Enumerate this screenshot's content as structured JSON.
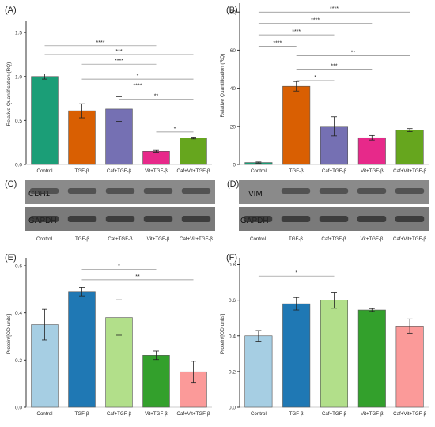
{
  "figure": {
    "panels": [
      {
        "label": "(A)",
        "type": "bar",
        "ylabel": "Relative Quantification (RQ)",
        "ylim": [
          0,
          1.6
        ],
        "yticks": [
          "0.0",
          "0.5",
          "1.0",
          "1.5"
        ],
        "ytick_values": [
          0,
          0.5,
          1.0,
          1.5
        ],
        "categories": [
          "Control",
          "TGF-β",
          "Caf+TGF-β",
          "Vit+TGF-β",
          "Caf+Vit+TGF-β"
        ],
        "values": [
          1.0,
          0.61,
          0.63,
          0.15,
          0.3
        ],
        "errors": [
          0.03,
          0.08,
          0.14,
          0.01,
          0.01
        ],
        "colors": [
          "#1b9e77",
          "#d95f02",
          "#7570b3",
          "#e7298a",
          "#66a61e"
        ],
        "significance": [
          {
            "from": 0,
            "to": 3,
            "label": "****",
            "y": 1.35
          },
          {
            "from": 0,
            "to": 4,
            "label": "***",
            "y": 1.25
          },
          {
            "from": 1,
            "to": 3,
            "label": "****",
            "y": 1.14
          },
          {
            "from": 1,
            "to": 4,
            "label": "*",
            "y": 0.97
          },
          {
            "from": 2,
            "to": 3,
            "label": "****",
            "y": 0.86
          },
          {
            "from": 2,
            "to": 4,
            "label": "**",
            "y": 0.74
          },
          {
            "from": 3,
            "to": 4,
            "label": "*",
            "y": 0.37
          }
        ]
      },
      {
        "label": "(B)",
        "type": "bar",
        "ylabel": "Relative Quantification (RQ)",
        "ylim": [
          0,
          83
        ],
        "yticks": [
          "0",
          "20",
          "40",
          "60",
          "80"
        ],
        "ytick_values": [
          0,
          20,
          40,
          60,
          80
        ],
        "categories": [
          "Control",
          "TGF-β",
          "Caf+TGF-β",
          "Vit+TGF-β",
          "Caf+Vit+TGF-β"
        ],
        "values": [
          1.0,
          41.0,
          20.0,
          14.0,
          18.0
        ],
        "errors": [
          0.3,
          2.5,
          5.0,
          1.2,
          0.8
        ],
        "colors": [
          "#1b9e77",
          "#d95f02",
          "#7570b3",
          "#e7298a",
          "#66a61e"
        ],
        "significance": [
          {
            "from": 0,
            "to": 4,
            "label": "****",
            "y": 80
          },
          {
            "from": 0,
            "to": 3,
            "label": "****",
            "y": 74
          },
          {
            "from": 0,
            "to": 2,
            "label": "****",
            "y": 68
          },
          {
            "from": 0,
            "to": 1,
            "label": "****",
            "y": 62
          },
          {
            "from": 1,
            "to": 4,
            "label": "**",
            "y": 57
          },
          {
            "from": 1,
            "to": 3,
            "label": "***",
            "y": 50
          },
          {
            "from": 1,
            "to": 2,
            "label": "*",
            "y": 44
          }
        ]
      },
      {
        "label": "(E)",
        "type": "bar",
        "ylabel": "Protein/[OD units]",
        "ylim": [
          0,
          0.62
        ],
        "yticks": [
          "0.0",
          "0.2",
          "0.4",
          "0.6"
        ],
        "ytick_values": [
          0,
          0.2,
          0.4,
          0.6
        ],
        "categories": [
          "Control",
          "TGF-β",
          "Caf+TGF-β",
          "Vit+TGF-β",
          "Caf+Vit+TGF-β"
        ],
        "values": [
          0.35,
          0.49,
          0.38,
          0.22,
          0.15
        ],
        "errors": [
          0.065,
          0.018,
          0.075,
          0.018,
          0.045
        ],
        "colors": [
          "#a6cee3",
          "#1f78b4",
          "#b2df8a",
          "#33a02c",
          "#fb9a99"
        ],
        "significance": [
          {
            "from": 1,
            "to": 3,
            "label": "*",
            "y": 0.585
          },
          {
            "from": 1,
            "to": 4,
            "label": "**",
            "y": 0.54
          }
        ]
      },
      {
        "label": "(F)",
        "type": "bar",
        "ylabel": "Protein/[OD units]",
        "ylim": [
          0,
          0.82
        ],
        "yticks": [
          "0.0",
          "0.2",
          "0.4",
          "0.6",
          "0.8"
        ],
        "ytick_values": [
          0,
          0.2,
          0.4,
          0.6,
          0.8
        ],
        "categories": [
          "Control",
          "TGF-β",
          "Caf+TGF-β",
          "Vit+TGF-β",
          "Caf+Vit+TGF-β"
        ],
        "values": [
          0.4,
          0.58,
          0.6,
          0.545,
          0.455
        ],
        "errors": [
          0.03,
          0.035,
          0.045,
          0.008,
          0.04
        ],
        "colors": [
          "#a6cee3",
          "#1f78b4",
          "#b2df8a",
          "#33a02c",
          "#fb9a99"
        ],
        "significance": [
          {
            "from": 0,
            "to": 2,
            "label": "*",
            "y": 0.735
          }
        ]
      }
    ],
    "blots": [
      {
        "label": "(C)",
        "bands": [
          "CDH1",
          "GAPDH"
        ],
        "categories": [
          "Control",
          "TGF-β",
          "Caf+TGF-β",
          "Vit+TGF-β",
          "Caf+Vit+TGF-β"
        ]
      },
      {
        "label": "(D)",
        "bands": [
          "VIM",
          "GAPDH"
        ],
        "categories": [
          "Control",
          "TGF-β",
          "Caf+TGF-β",
          "Vit+TGF-β",
          "Caf+Vit+TGF-β"
        ]
      }
    ]
  },
  "chart_data": [
    {
      "type": "bar",
      "panel": "(A)",
      "ylabel": "Relative Quantification (RQ)",
      "ylim": [
        0,
        1.6
      ],
      "categories": [
        "Control",
        "TGF-β",
        "Caf+TGF-β",
        "Vit+TGF-β",
        "Caf+Vit+TGF-β"
      ],
      "values": [
        1.0,
        0.61,
        0.63,
        0.15,
        0.3
      ],
      "errors": [
        0.03,
        0.08,
        0.14,
        0.01,
        0.01
      ]
    },
    {
      "type": "bar",
      "panel": "(B)",
      "ylabel": "Relative Quantification (RQ)",
      "ylim": [
        0,
        83
      ],
      "categories": [
        "Control",
        "TGF-β",
        "Caf+TGF-β",
        "Vit+TGF-β",
        "Caf+Vit+TGF-β"
      ],
      "values": [
        1.0,
        41.0,
        20.0,
        14.0,
        18.0
      ],
      "errors": [
        0.3,
        2.5,
        5.0,
        1.2,
        0.8
      ]
    },
    {
      "type": "bar",
      "panel": "(E)",
      "ylabel": "Protein/[OD units]",
      "ylim": [
        0,
        0.62
      ],
      "categories": [
        "Control",
        "TGF-β",
        "Caf+TGF-β",
        "Vit+TGF-β",
        "Caf+Vit+TGF-β"
      ],
      "values": [
        0.35,
        0.49,
        0.38,
        0.22,
        0.15
      ],
      "errors": [
        0.065,
        0.018,
        0.075,
        0.018,
        0.045
      ]
    },
    {
      "type": "bar",
      "panel": "(F)",
      "ylabel": "Protein/[OD units]",
      "ylim": [
        0,
        0.82
      ],
      "categories": [
        "Control",
        "TGF-β",
        "Caf+TGF-β",
        "Vit+TGF-β",
        "Caf+Vit+TGF-β"
      ],
      "values": [
        0.4,
        0.58,
        0.6,
        0.545,
        0.455
      ],
      "errors": [
        0.03,
        0.035,
        0.045,
        0.008,
        0.04
      ]
    }
  ]
}
